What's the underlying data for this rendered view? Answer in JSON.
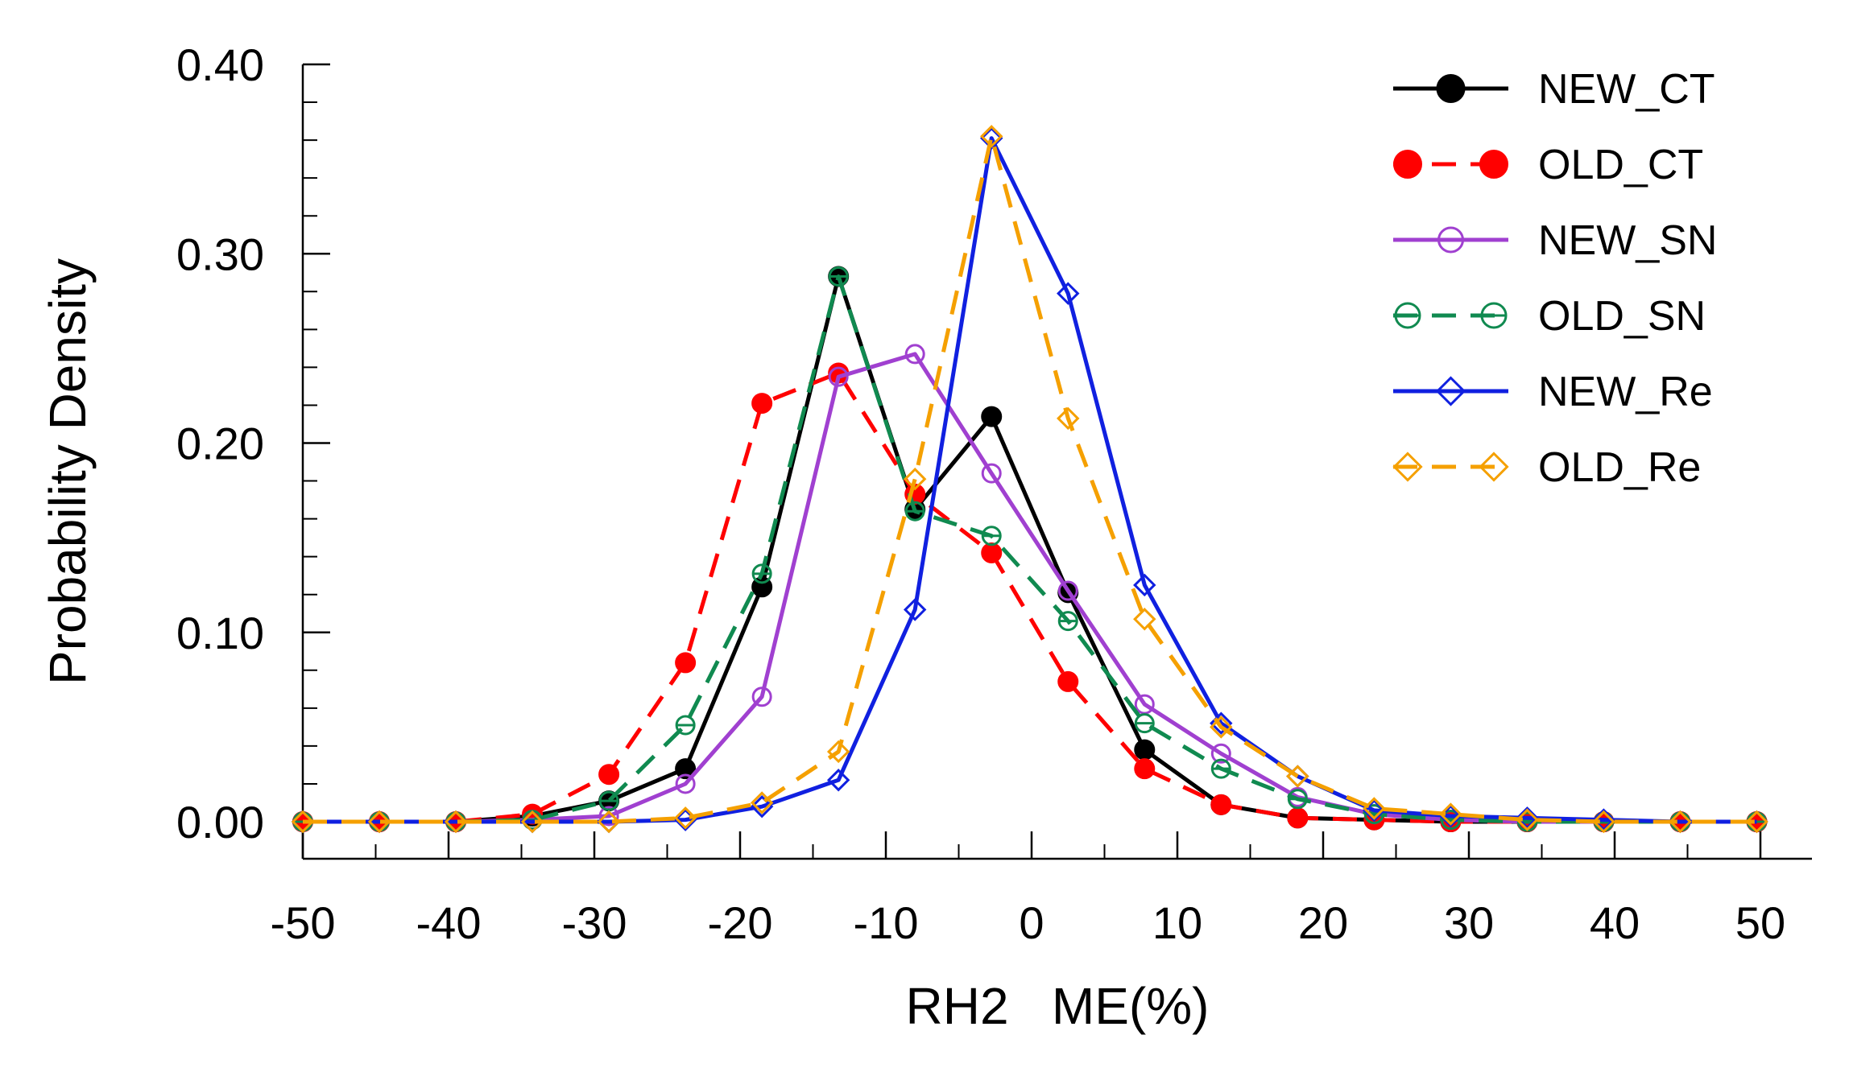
{
  "chart_data": {
    "type": "line",
    "title": "",
    "xlabel": "RH2   ME(%)",
    "ylabel": "Probability Density",
    "xlim": [
      -50,
      50
    ],
    "ylim": [
      0,
      0.4
    ],
    "xticks": [
      -50,
      -40,
      -30,
      -20,
      -10,
      0,
      10,
      20,
      30,
      40,
      50
    ],
    "xtick_labels": [
      "-50",
      "-40",
      "-30",
      "-20",
      "-10",
      "0",
      "10",
      "20",
      "30",
      "40",
      "50"
    ],
    "yticks": [
      0,
      0.1,
      0.2,
      0.3,
      0.4
    ],
    "ytick_labels": [
      "0.00",
      "0.10",
      "0.20",
      "0.30",
      "0.40"
    ],
    "legend_position": "top-right",
    "x": [
      -50,
      -44.75,
      -39.5,
      -34.25,
      -29,
      -23.75,
      -18.5,
      -13.25,
      -8,
      -2.75,
      2.5,
      7.75,
      13,
      18.25,
      23.5,
      28.75,
      34,
      39.25,
      44.5,
      49.75
    ],
    "series": [
      {
        "name": "NEW_CT",
        "color": "#000000",
        "dash": false,
        "marker": "filled-circle",
        "values": [
          0,
          0,
          0,
          0.003,
          0.011,
          0.028,
          0.124,
          0.288,
          0.165,
          0.214,
          0.121,
          0.038,
          0.009,
          0.002,
          0.001,
          0,
          0,
          0,
          0,
          0
        ]
      },
      {
        "name": "OLD_CT",
        "color": "#ff0000",
        "dash": true,
        "marker": "filled-circle",
        "values": [
          0,
          0,
          0,
          0.004,
          0.025,
          0.084,
          0.221,
          0.237,
          0.173,
          0.142,
          0.074,
          0.028,
          0.009,
          0.002,
          0.001,
          0,
          0,
          0,
          0,
          0
        ]
      },
      {
        "name": "NEW_SN",
        "color": "#a040d0",
        "dash": false,
        "marker": "open-circle",
        "values": [
          0,
          0,
          0,
          0.001,
          0.003,
          0.02,
          0.066,
          0.235,
          0.247,
          0.184,
          0.122,
          0.062,
          0.036,
          0.013,
          0.004,
          0.001,
          0,
          0,
          0,
          0
        ]
      },
      {
        "name": "OLD_SN",
        "color": "#108a50",
        "dash": true,
        "marker": "open-circle-bar",
        "values": [
          0,
          0,
          0,
          0.001,
          0.011,
          0.051,
          0.131,
          0.288,
          0.164,
          0.151,
          0.106,
          0.052,
          0.028,
          0.012,
          0.004,
          0.001,
          0,
          0,
          0,
          0
        ]
      },
      {
        "name": "NEW_Re",
        "color": "#1020e0",
        "dash": false,
        "marker": "open-diamond",
        "values": [
          0,
          0,
          0,
          0,
          0,
          0.001,
          0.008,
          0.022,
          0.112,
          0.361,
          0.279,
          0.125,
          0.052,
          0.024,
          0.006,
          0.003,
          0.002,
          0.001,
          0,
          0
        ]
      },
      {
        "name": "OLD_Re",
        "color": "#f5a000",
        "dash": true,
        "marker": "open-diamond",
        "values": [
          0,
          0,
          0,
          0,
          0,
          0.002,
          0.01,
          0.037,
          0.181,
          0.362,
          0.213,
          0.107,
          0.05,
          0.024,
          0.007,
          0.004,
          0.001,
          0,
          0,
          0
        ]
      }
    ]
  }
}
